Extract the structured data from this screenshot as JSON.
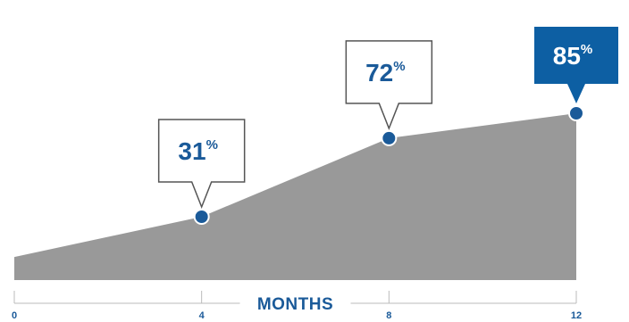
{
  "chart_data": {
    "type": "area",
    "x": [
      0,
      4,
      8,
      12
    ],
    "values": [
      10,
      31,
      72,
      85
    ],
    "xlim": [
      0,
      12
    ],
    "xlabel": "MONTHS",
    "x_ticks": [
      "0",
      "4",
      "8",
      "12"
    ],
    "grid": false,
    "annotations": [
      {
        "x": 4,
        "value": "31",
        "unit": "%",
        "highlight": false
      },
      {
        "x": 8,
        "value": "72",
        "unit": "%",
        "highlight": false
      },
      {
        "x": 12,
        "value": "85",
        "unit": "%",
        "highlight": true
      }
    ],
    "colors": {
      "area": "#999999",
      "marker": "#1a5a99",
      "marker_stroke": "#ffffff",
      "callout_fill": "#ffffff",
      "callout_stroke": "#555555",
      "highlight_fill": "#0d5fa3",
      "highlight_text": "#ffffff",
      "text": "#1a5a99",
      "axis": "#bbbbbb"
    }
  }
}
